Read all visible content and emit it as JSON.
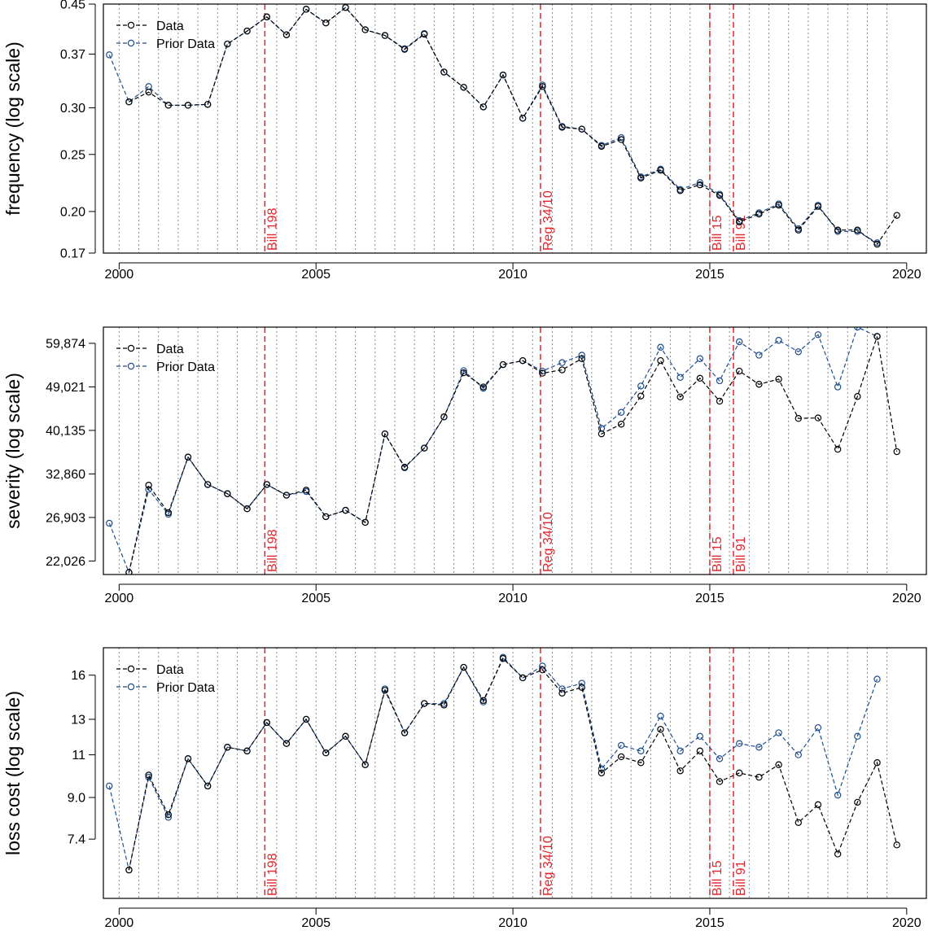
{
  "chart_data": [
    {
      "type": "line",
      "ylabel": "frequency (log scale)",
      "yscale": "log",
      "ylim": [
        0.17,
        0.45
      ],
      "xlim": [
        1999.6,
        2020.5
      ],
      "xticks": [
        "2000",
        "2005",
        "2010",
        "2015",
        "2020"
      ],
      "yticks": [
        "0.17",
        "0.20",
        "0.25",
        "0.30",
        "0.37",
        "0.45"
      ],
      "legend": "top-left",
      "series": [
        {
          "name": "Data",
          "color": "#000000",
          "x": [
            2000.25,
            2000.75,
            2001.25,
            2001.75,
            2002.25,
            2002.75,
            2003.25,
            2003.75,
            2004.25,
            2004.75,
            2005.25,
            2005.75,
            2006.25,
            2006.75,
            2007.25,
            2007.75,
            2008.25,
            2008.75,
            2009.25,
            2009.75,
            2010.25,
            2010.75,
            2011.25,
            2011.75,
            2012.25,
            2012.75,
            2013.25,
            2013.75,
            2014.25,
            2014.75,
            2015.25,
            2015.75,
            2016.25,
            2016.75,
            2017.25,
            2017.75,
            2018.25,
            2018.75,
            2019.25,
            2019.75
          ],
          "y": [
            0.307,
            0.319,
            0.303,
            0.303,
            0.304,
            0.385,
            0.405,
            0.428,
            0.399,
            0.441,
            0.418,
            0.444,
            0.407,
            0.398,
            0.377,
            0.4,
            0.345,
            0.325,
            0.301,
            0.341,
            0.288,
            0.326,
            0.278,
            0.276,
            0.258,
            0.265,
            0.228,
            0.235,
            0.217,
            0.222,
            0.213,
            0.192,
            0.198,
            0.205,
            0.186,
            0.204,
            0.186,
            0.186,
            0.176,
            0.197
          ]
        },
        {
          "name": "Prior Data",
          "color": "#1f4e8c",
          "x": [
            1999.75,
            2000.25,
            2000.75,
            2001.25,
            2001.75,
            2002.25,
            2002.75,
            2003.25,
            2003.75,
            2004.25,
            2004.75,
            2005.25,
            2005.75,
            2006.25,
            2006.75,
            2007.25,
            2007.75,
            2008.25,
            2008.75,
            2009.25,
            2009.75,
            2010.25,
            2010.75,
            2011.25,
            2011.75,
            2012.25,
            2012.75,
            2013.25,
            2013.75,
            2014.25,
            2014.75,
            2015.25,
            2015.75,
            2016.25,
            2016.75,
            2017.25,
            2017.75,
            2018.25,
            2018.75,
            2019.25
          ],
          "y": [
            0.369,
            0.307,
            0.326,
            0.303,
            0.303,
            0.304,
            0.385,
            0.405,
            0.428,
            0.399,
            0.441,
            0.418,
            0.444,
            0.407,
            0.398,
            0.378,
            0.401,
            0.345,
            0.325,
            0.301,
            0.341,
            0.288,
            0.328,
            0.279,
            0.276,
            0.259,
            0.267,
            0.229,
            0.236,
            0.218,
            0.224,
            0.214,
            0.193,
            0.199,
            0.206,
            0.187,
            0.205,
            0.185,
            0.185,
            0.177
          ]
        }
      ],
      "vlines": [
        {
          "x": 2003.7,
          "label": "Bill 198"
        },
        {
          "x": 2010.7,
          "label": "Reg 34/10"
        },
        {
          "x": 2015.0,
          "label": "Bill 15"
        },
        {
          "x": 2015.6,
          "label": "Bill 91"
        }
      ]
    },
    {
      "type": "line",
      "ylabel": "severity (log scale)",
      "yscale": "log",
      "ylim": [
        20700,
        64500
      ],
      "xlim": [
        1999.6,
        2020.5
      ],
      "xticks": [
        "2000",
        "2005",
        "2010",
        "2015",
        "2020"
      ],
      "yticks": [
        "22,026",
        "26,903",
        "32,860",
        "40,135",
        "49,021",
        "59,874"
      ],
      "legend": "top-left",
      "series": [
        {
          "name": "Data",
          "color": "#000000",
          "x": [
            2000.25,
            2000.75,
            2001.25,
            2001.75,
            2002.25,
            2002.75,
            2003.25,
            2003.75,
            2004.25,
            2004.75,
            2005.25,
            2005.75,
            2006.25,
            2006.75,
            2007.25,
            2007.75,
            2008.25,
            2008.75,
            2009.25,
            2009.75,
            2010.25,
            2010.75,
            2011.25,
            2011.75,
            2012.25,
            2012.75,
            2013.25,
            2013.75,
            2014.25,
            2014.75,
            2015.25,
            2015.75,
            2016.25,
            2016.75,
            2017.25,
            2017.75,
            2018.25,
            2018.75,
            2019.25,
            2019.75
          ],
          "y": [
            20900,
            31200,
            27500,
            35500,
            31300,
            30000,
            28000,
            31300,
            29800,
            30500,
            27000,
            27800,
            26300,
            39500,
            33900,
            37000,
            42700,
            52300,
            49000,
            54300,
            55300,
            52200,
            53000,
            55800,
            39500,
            41300,
            47000,
            55300,
            46800,
            51000,
            45900,
            52700,
            49600,
            50800,
            42400,
            42500,
            36800,
            46900,
            61800,
            36400
          ]
        },
        {
          "name": "Prior Data",
          "color": "#1f4e8c",
          "x": [
            1999.75,
            2000.25,
            2000.75,
            2001.25,
            2001.75,
            2002.25,
            2002.75,
            2003.25,
            2003.75,
            2004.25,
            2004.75,
            2005.25,
            2005.75,
            2006.25,
            2006.75,
            2007.25,
            2007.75,
            2008.25,
            2008.75,
            2009.25,
            2009.75,
            2010.25,
            2010.75,
            2011.25,
            2011.75,
            2012.25,
            2012.75,
            2013.25,
            2013.75,
            2014.25,
            2014.75,
            2015.25,
            2015.75,
            2016.25,
            2016.75,
            2017.25,
            2017.75,
            2018.25,
            2018.75,
            2019.25
          ],
          "y": [
            26200,
            20900,
            30600,
            27300,
            35500,
            31300,
            30000,
            28000,
            31300,
            29800,
            30300,
            27000,
            27800,
            26300,
            39500,
            33800,
            37000,
            42700,
            52800,
            48700,
            54300,
            55300,
            52700,
            54800,
            56700,
            40500,
            43600,
            49200,
            58800,
            51200,
            55800,
            50400,
            60300,
            56700,
            60700,
            57600,
            62300,
            49000,
            64500,
            61800
          ]
        }
      ],
      "vlines": [
        {
          "x": 2003.7,
          "label": "Bill 198"
        },
        {
          "x": 2010.7,
          "label": "Reg 34/10"
        },
        {
          "x": 2015.0,
          "label": "Bill 15"
        },
        {
          "x": 2015.6,
          "label": "Bill 91"
        }
      ]
    },
    {
      "type": "line",
      "ylabel": "loss cost (log scale)",
      "yscale": "log",
      "ylim": [
        5.6,
        18.2
      ],
      "xlim": [
        1999.6,
        2020.5
      ],
      "xticks": [
        "2000",
        "2005",
        "2010",
        "2015",
        "2020"
      ],
      "yticks": [
        "7.4",
        "9.0",
        "11",
        "13",
        "16"
      ],
      "legend": "top-left",
      "series": [
        {
          "name": "Data",
          "color": "#000000",
          "x": [
            2000.25,
            2000.75,
            2001.25,
            2001.75,
            2002.25,
            2002.75,
            2003.25,
            2003.75,
            2004.25,
            2004.75,
            2005.25,
            2005.75,
            2006.25,
            2006.75,
            2007.25,
            2007.75,
            2008.25,
            2008.75,
            2009.25,
            2009.75,
            2010.25,
            2010.75,
            2011.25,
            2011.75,
            2012.25,
            2012.75,
            2013.25,
            2013.75,
            2014.25,
            2014.75,
            2015.25,
            2015.75,
            2016.25,
            2016.75,
            2017.25,
            2017.75,
            2018.25,
            2018.75,
            2019.25,
            2019.75
          ],
          "y": [
            6.4,
            10.0,
            8.3,
            10.8,
            9.5,
            11.4,
            11.2,
            12.8,
            11.6,
            13.0,
            11.1,
            12.0,
            10.5,
            14.9,
            12.2,
            14.0,
            13.9,
            16.6,
            14.2,
            17.3,
            15.8,
            16.4,
            14.7,
            15.1,
            10.1,
            10.9,
            10.6,
            12.4,
            10.2,
            11.2,
            9.7,
            10.1,
            9.9,
            10.5,
            8.0,
            8.7,
            6.9,
            8.8,
            10.6,
            7.2
          ]
        },
        {
          "name": "Prior Data",
          "color": "#1f4e8c",
          "x": [
            1999.75,
            2000.25,
            2000.75,
            2001.25,
            2001.75,
            2002.25,
            2002.75,
            2003.25,
            2003.75,
            2004.25,
            2004.75,
            2005.25,
            2005.75,
            2006.25,
            2006.75,
            2007.25,
            2007.75,
            2008.25,
            2008.75,
            2009.25,
            2009.75,
            2010.25,
            2010.75,
            2011.25,
            2011.75,
            2012.25,
            2012.75,
            2013.25,
            2013.75,
            2014.25,
            2014.75,
            2015.25,
            2015.75,
            2016.25,
            2016.75,
            2017.25,
            2017.75,
            2018.25,
            2018.75,
            2019.25
          ],
          "y": [
            9.5,
            6.4,
            9.9,
            8.2,
            10.8,
            9.5,
            11.4,
            11.2,
            12.8,
            11.6,
            13.0,
            11.1,
            12.0,
            10.5,
            15.0,
            12.2,
            14.0,
            14.0,
            16.6,
            14.1,
            17.4,
            15.8,
            16.7,
            15.0,
            15.4,
            10.3,
            11.5,
            11.2,
            13.2,
            11.2,
            12.0,
            10.8,
            11.6,
            11.4,
            12.2,
            11.0,
            12.5,
            9.1,
            12.0,
            15.7
          ]
        }
      ],
      "vlines": [
        {
          "x": 2003.7,
          "label": "Bill 198"
        },
        {
          "x": 2010.7,
          "label": "Reg 34/10"
        },
        {
          "x": 2015.0,
          "label": "Bill 15"
        },
        {
          "x": 2015.6,
          "label": "Bill 91"
        }
      ]
    }
  ]
}
